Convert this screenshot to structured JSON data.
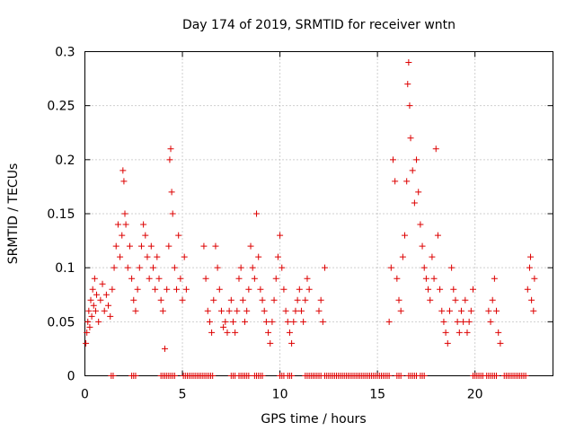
{
  "chart_data": {
    "type": "scatter",
    "title": "Day 174 of 2019, SRMTID for receiver wntn",
    "xlabel": "GPS time / hours",
    "ylabel": "SRMTID / TECUs",
    "xlim": [
      0,
      24
    ],
    "ylim": [
      0,
      0.3
    ],
    "grid": true,
    "marker": "+",
    "color": "#dd0000",
    "xticks": [
      {
        "value": 0,
        "label": "0"
      },
      {
        "value": 5,
        "label": "5"
      },
      {
        "value": 10,
        "label": "10"
      },
      {
        "value": 15,
        "label": "15"
      },
      {
        "value": 20,
        "label": "20"
      }
    ],
    "yticks": [
      {
        "value": 0,
        "label": "0"
      },
      {
        "value": 0.05,
        "label": "0.05"
      },
      {
        "value": 0.1,
        "label": "0.1"
      },
      {
        "value": 0.15,
        "label": "0.15"
      },
      {
        "value": 0.2,
        "label": "0.2"
      },
      {
        "value": 0.25,
        "label": "0.25"
      },
      {
        "value": 0.3,
        "label": "0.3"
      }
    ],
    "series": [
      {
        "name": "SRMTID",
        "points": [
          [
            0.05,
            0.03
          ],
          [
            0.1,
            0.04
          ],
          [
            0.15,
            0.05
          ],
          [
            0.2,
            0.06
          ],
          [
            0.25,
            0.045
          ],
          [
            0.3,
            0.07
          ],
          [
            0.35,
            0.055
          ],
          [
            0.4,
            0.08
          ],
          [
            0.45,
            0.065
          ],
          [
            0.5,
            0.09
          ],
          [
            0.55,
            0.06
          ],
          [
            0.6,
            0.075
          ],
          [
            0.7,
            0.05
          ],
          [
            0.8,
            0.07
          ],
          [
            0.9,
            0.085
          ],
          [
            1.0,
            0.06
          ],
          [
            1.1,
            0.075
          ],
          [
            1.2,
            0.065
          ],
          [
            1.3,
            0.055
          ],
          [
            1.4,
            0.08
          ],
          [
            1.5,
            0.1
          ],
          [
            1.6,
            0.12
          ],
          [
            1.7,
            0.14
          ],
          [
            1.8,
            0.11
          ],
          [
            1.9,
            0.13
          ],
          [
            1.95,
            0.19
          ],
          [
            2.0,
            0.18
          ],
          [
            2.05,
            0.15
          ],
          [
            2.1,
            0.14
          ],
          [
            2.2,
            0.1
          ],
          [
            2.3,
            0.12
          ],
          [
            2.4,
            0.09
          ],
          [
            2.5,
            0.07
          ],
          [
            2.6,
            0.06
          ],
          [
            2.7,
            0.08
          ],
          [
            2.8,
            0.1
          ],
          [
            2.9,
            0.12
          ],
          [
            3.0,
            0.14
          ],
          [
            3.1,
            0.13
          ],
          [
            3.2,
            0.11
          ],
          [
            3.3,
            0.09
          ],
          [
            3.4,
            0.12
          ],
          [
            3.5,
            0.1
          ],
          [
            3.6,
            0.08
          ],
          [
            3.7,
            0.11
          ],
          [
            3.8,
            0.09
          ],
          [
            3.9,
            0.07
          ],
          [
            4.0,
            0.06
          ],
          [
            4.1,
            0.025
          ],
          [
            4.2,
            0.08
          ],
          [
            4.3,
            0.12
          ],
          [
            4.35,
            0.2
          ],
          [
            4.4,
            0.21
          ],
          [
            4.45,
            0.17
          ],
          [
            4.5,
            0.15
          ],
          [
            4.6,
            0.1
          ],
          [
            4.7,
            0.08
          ],
          [
            4.8,
            0.13
          ],
          [
            4.9,
            0.09
          ],
          [
            5.0,
            0.07
          ],
          [
            5.1,
            0.11
          ],
          [
            5.2,
            0.08
          ],
          [
            6.1,
            0.12
          ],
          [
            6.2,
            0.09
          ],
          [
            6.3,
            0.06
          ],
          [
            6.4,
            0.05
          ],
          [
            6.5,
            0.04
          ],
          [
            6.6,
            0.07
          ],
          [
            6.7,
            0.12
          ],
          [
            6.8,
            0.1
          ],
          [
            6.9,
            0.08
          ],
          [
            7.0,
            0.06
          ],
          [
            7.1,
            0.045
          ],
          [
            7.2,
            0.05
          ],
          [
            7.3,
            0.04
          ],
          [
            7.4,
            0.06
          ],
          [
            7.5,
            0.07
          ],
          [
            7.6,
            0.05
          ],
          [
            7.7,
            0.04
          ],
          [
            7.8,
            0.06
          ],
          [
            7.9,
            0.09
          ],
          [
            8.0,
            0.1
          ],
          [
            8.1,
            0.07
          ],
          [
            8.2,
            0.05
          ],
          [
            8.3,
            0.06
          ],
          [
            8.4,
            0.08
          ],
          [
            8.5,
            0.12
          ],
          [
            8.6,
            0.1
          ],
          [
            8.7,
            0.09
          ],
          [
            8.8,
            0.15
          ],
          [
            8.9,
            0.11
          ],
          [
            9.0,
            0.08
          ],
          [
            9.1,
            0.07
          ],
          [
            9.2,
            0.06
          ],
          [
            9.3,
            0.05
          ],
          [
            9.4,
            0.04
          ],
          [
            9.5,
            0.03
          ],
          [
            9.6,
            0.05
          ],
          [
            9.7,
            0.07
          ],
          [
            9.8,
            0.09
          ],
          [
            9.9,
            0.11
          ],
          [
            10.0,
            0.13
          ],
          [
            10.1,
            0.1
          ],
          [
            10.2,
            0.08
          ],
          [
            10.3,
            0.06
          ],
          [
            10.4,
            0.05
          ],
          [
            10.5,
            0.04
          ],
          [
            10.6,
            0.03
          ],
          [
            10.7,
            0.05
          ],
          [
            10.8,
            0.06
          ],
          [
            10.9,
            0.07
          ],
          [
            11.0,
            0.08
          ],
          [
            11.1,
            0.06
          ],
          [
            11.2,
            0.05
          ],
          [
            11.3,
            0.07
          ],
          [
            11.4,
            0.09
          ],
          [
            11.5,
            0.08
          ],
          [
            12.0,
            0.06
          ],
          [
            12.1,
            0.07
          ],
          [
            12.2,
            0.05
          ],
          [
            12.3,
            0.1
          ],
          [
            15.6,
            0.05
          ],
          [
            15.7,
            0.1
          ],
          [
            15.8,
            0.2
          ],
          [
            15.9,
            0.18
          ],
          [
            16.0,
            0.09
          ],
          [
            16.1,
            0.07
          ],
          [
            16.2,
            0.06
          ],
          [
            16.3,
            0.11
          ],
          [
            16.4,
            0.13
          ],
          [
            16.5,
            0.18
          ],
          [
            16.55,
            0.27
          ],
          [
            16.6,
            0.29
          ],
          [
            16.65,
            0.25
          ],
          [
            16.7,
            0.22
          ],
          [
            16.8,
            0.19
          ],
          [
            16.9,
            0.16
          ],
          [
            17.0,
            0.2
          ],
          [
            17.1,
            0.17
          ],
          [
            17.2,
            0.14
          ],
          [
            17.3,
            0.12
          ],
          [
            17.4,
            0.1
          ],
          [
            17.5,
            0.09
          ],
          [
            17.6,
            0.08
          ],
          [
            17.7,
            0.07
          ],
          [
            17.8,
            0.11
          ],
          [
            17.9,
            0.09
          ],
          [
            18.0,
            0.21
          ],
          [
            18.1,
            0.13
          ],
          [
            18.2,
            0.08
          ],
          [
            18.3,
            0.06
          ],
          [
            18.4,
            0.05
          ],
          [
            18.5,
            0.04
          ],
          [
            18.6,
            0.03
          ],
          [
            18.7,
            0.06
          ],
          [
            18.8,
            0.1
          ],
          [
            18.9,
            0.08
          ],
          [
            19.0,
            0.07
          ],
          [
            19.1,
            0.05
          ],
          [
            19.2,
            0.04
          ],
          [
            19.3,
            0.06
          ],
          [
            19.4,
            0.05
          ],
          [
            19.5,
            0.07
          ],
          [
            19.6,
            0.04
          ],
          [
            19.7,
            0.05
          ],
          [
            19.8,
            0.06
          ],
          [
            19.9,
            0.08
          ],
          [
            20.7,
            0.06
          ],
          [
            20.8,
            0.05
          ],
          [
            20.9,
            0.07
          ],
          [
            21.0,
            0.09
          ],
          [
            21.1,
            0.06
          ],
          [
            21.2,
            0.04
          ],
          [
            21.3,
            0.03
          ],
          [
            22.7,
            0.08
          ],
          [
            22.8,
            0.1
          ],
          [
            22.85,
            0.11
          ],
          [
            22.9,
            0.07
          ],
          [
            23.0,
            0.06
          ],
          [
            23.05,
            0.09
          ]
        ],
        "zero_intervals": [
          [
            1.35,
            1.45
          ],
          [
            2.4,
            2.6
          ],
          [
            3.9,
            4.1
          ],
          [
            4.2,
            4.4
          ],
          [
            4.5,
            4.6
          ],
          [
            5.05,
            6.6
          ],
          [
            7.5,
            7.7
          ],
          [
            7.9,
            8.4
          ],
          [
            8.7,
            9.1
          ],
          [
            10.0,
            10.2
          ],
          [
            10.4,
            10.6
          ],
          [
            11.3,
            12.1
          ],
          [
            12.3,
            15.6
          ],
          [
            16.0,
            16.2
          ],
          [
            16.6,
            17.0
          ],
          [
            17.2,
            17.4
          ],
          [
            19.9,
            20.4
          ],
          [
            20.6,
            20.9
          ],
          [
            21.0,
            21.1
          ],
          [
            21.5,
            22.6
          ]
        ],
        "zero_step": 0.1
      }
    ]
  }
}
